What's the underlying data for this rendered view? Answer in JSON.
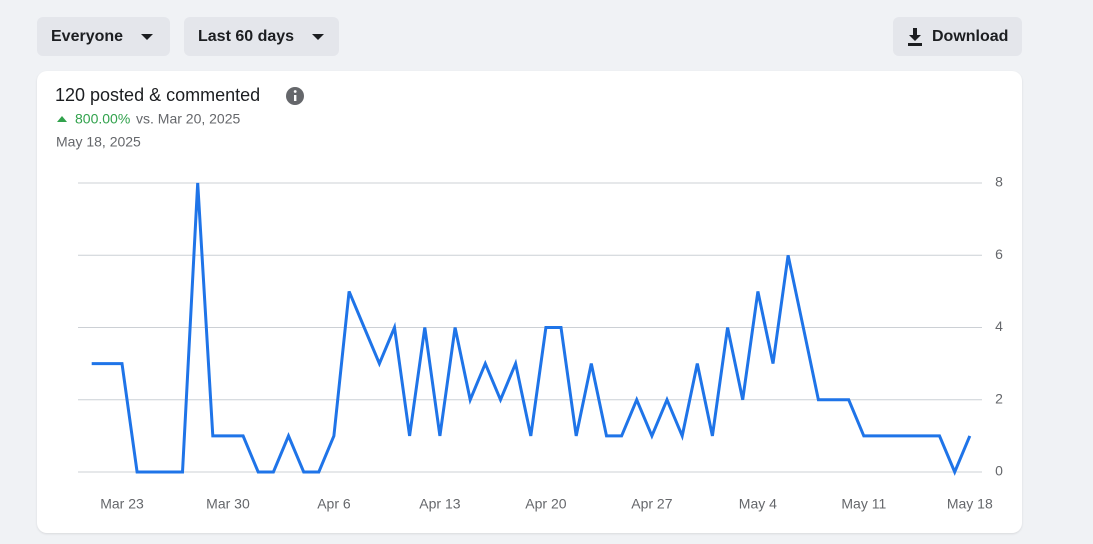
{
  "filters": [
    "Everyone",
    "Last 60 days"
  ],
  "download": "Download",
  "chart_data": {
    "type": "line",
    "title": "120 posted & commented",
    "change": "800.00%",
    "comparison": "vs. Mar 20, 2025",
    "date": "May 18, 2025",
    "x": [
      null,
      null,
      "Mar 23",
      null,
      null,
      null,
      null,
      null,
      null,
      "Mar 30",
      null,
      null,
      null,
      null,
      null,
      null,
      "Apr 6",
      null,
      null,
      null,
      null,
      null,
      null,
      "Apr 13",
      null,
      null,
      null,
      null,
      null,
      null,
      "Apr 20",
      null,
      null,
      null,
      null,
      null,
      null,
      "Apr 27",
      null,
      null,
      null,
      null,
      null,
      null,
      "May 4",
      null,
      null,
      null,
      null,
      null,
      null,
      "May 11",
      null,
      null,
      null,
      null,
      null,
      null,
      "May 18"
    ],
    "series": [
      {
        "color": "#1f74e8",
        "values": [
          3,
          3,
          3,
          0,
          0,
          0,
          0,
          8,
          1,
          1,
          1,
          0,
          0,
          1,
          0,
          0,
          1,
          5,
          4,
          3,
          4,
          1,
          4,
          1,
          4,
          2,
          3,
          2,
          3,
          1,
          4,
          4,
          1,
          3,
          1,
          1,
          2,
          1,
          2,
          1,
          3,
          1,
          4,
          2,
          5,
          3,
          6,
          4,
          2,
          2,
          2,
          1,
          1,
          1,
          1,
          1,
          1,
          0,
          1
        ]
      }
    ],
    "ylim": [
      0,
      8
    ],
    "yticks": [
      0,
      2,
      4,
      6,
      8
    ],
    "grid": true
  }
}
